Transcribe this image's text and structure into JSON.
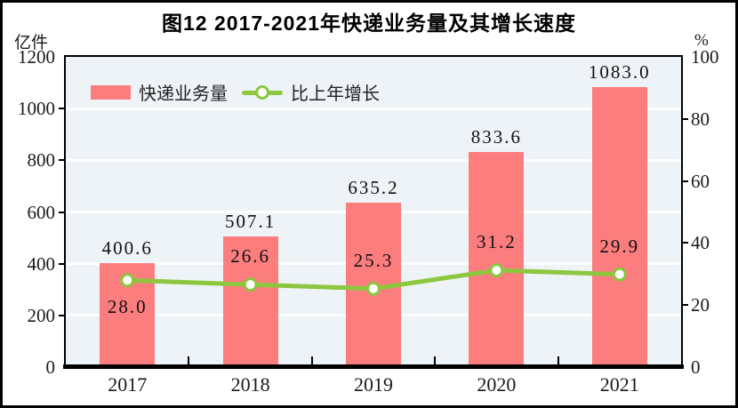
{
  "title": "图12  2017-2021年快递业务量及其增长速度",
  "left_axis": {
    "unit": "亿件",
    "ticks": [
      0,
      200,
      400,
      600,
      800,
      1000,
      1200
    ],
    "max": 1200
  },
  "right_axis": {
    "unit": "%",
    "ticks": [
      0,
      20,
      40,
      60,
      80,
      100
    ],
    "max": 100
  },
  "legend": {
    "bar_label": "快递业务量",
    "line_label": "比上年增长"
  },
  "colors": {
    "bar": "#fc7d7d",
    "line": "#8dc63f",
    "plot_bg": "#edf3f7",
    "grid": "#ffffff",
    "axis": "#000000",
    "marker_fill": "#ffffff"
  },
  "chart_data": {
    "type": "bar",
    "title": "图12 2017-2021年快递业务量及其增长速度",
    "categories": [
      "2017",
      "2018",
      "2019",
      "2020",
      "2021"
    ],
    "series": [
      {
        "name": "快递业务量",
        "type": "bar",
        "axis": "left",
        "values": [
          400.6,
          507.1,
          635.2,
          833.6,
          1083.0
        ],
        "labels": [
          "400.6",
          "507.1",
          "635.2",
          "833.6",
          "1083.0"
        ]
      },
      {
        "name": "比上年增长",
        "type": "line",
        "axis": "right",
        "values": [
          28.0,
          26.6,
          25.3,
          31.2,
          29.9
        ],
        "labels": [
          "28.0",
          "26.6",
          "25.3",
          "31.2",
          "29.9"
        ],
        "label_position": [
          "below",
          "above",
          "above",
          "above",
          "above"
        ]
      }
    ],
    "left_ylabel": "亿件",
    "right_ylabel": "%",
    "left_ylim": [
      0,
      1200
    ],
    "right_ylim": [
      0,
      100
    ],
    "grid": "horizontal-white",
    "legend_position": "top-left-inside"
  }
}
